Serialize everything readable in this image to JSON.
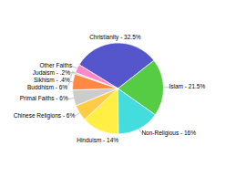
{
  "chart_data": {
    "type": "pie",
    "categories": [
      "Christianity - 32.5%",
      "Islam - 21.5%",
      "Non-Religious - 16%",
      "Hinduism - 14%",
      "Chinese Religions - 6%",
      "Primal Faiths - 6%",
      "Buddhism - 6%",
      "Sikhism - .4%",
      "Judaism - .2%",
      "Other Faiths"
    ],
    "values": [
      32.5,
      21.5,
      16.0,
      14.0,
      6.0,
      6.0,
      6.0,
      0.4,
      0.2,
      3.2
    ],
    "colors": [
      "#5555cc",
      "#55cc44",
      "#44dddd",
      "#ffee44",
      "#ffcc44",
      "#cccccc",
      "#ff8844",
      "#44bb44",
      "#228822",
      "#ff88cc"
    ]
  }
}
